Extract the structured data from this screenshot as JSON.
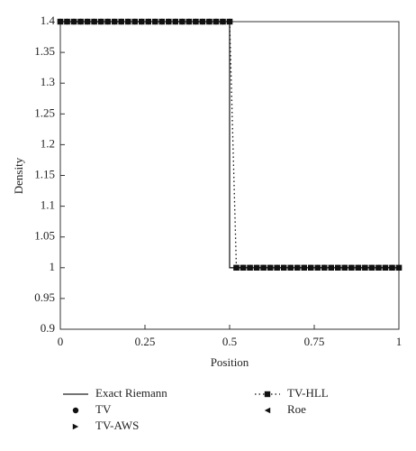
{
  "chart_data": {
    "type": "line",
    "xlabel": "Position",
    "ylabel": "Density",
    "xlim": [
      0,
      1
    ],
    "ylim": [
      0.9,
      1.4
    ],
    "xticks": [
      0,
      0.25,
      0.5,
      0.75,
      1
    ],
    "yticks": [
      0.9,
      0.95,
      1,
      1.05,
      1.1,
      1.15,
      1.2,
      1.25,
      1.3,
      1.35,
      1.4
    ],
    "series": [
      {
        "name": "Exact Riemann",
        "color": "#222222",
        "line": "solid",
        "marker": "none",
        "x": [
          0,
          0.5,
          0.5,
          1
        ],
        "values": [
          1.4,
          1.4,
          1,
          1
        ]
      },
      {
        "name": "TV",
        "color": "#111111",
        "line": "none",
        "marker": "circle",
        "x": [
          0,
          0.02,
          0.04,
          0.06,
          0.08,
          0.1,
          0.12,
          0.14,
          0.16,
          0.18,
          0.2,
          0.22,
          0.24,
          0.26,
          0.28,
          0.3,
          0.32,
          0.34,
          0.36,
          0.38,
          0.4,
          0.42,
          0.44,
          0.46,
          0.48,
          0.5,
          0.52,
          0.54,
          0.56,
          0.58,
          0.6,
          0.62,
          0.64,
          0.66,
          0.68,
          0.7,
          0.72,
          0.74,
          0.76,
          0.78,
          0.8,
          0.82,
          0.84,
          0.86,
          0.88,
          0.9,
          0.92,
          0.94,
          0.96,
          0.98,
          1
        ],
        "values": [
          1.4,
          1.4,
          1.4,
          1.4,
          1.4,
          1.4,
          1.4,
          1.4,
          1.4,
          1.4,
          1.4,
          1.4,
          1.4,
          1.4,
          1.4,
          1.4,
          1.4,
          1.4,
          1.4,
          1.4,
          1.4,
          1.4,
          1.4,
          1.4,
          1.4,
          1.4,
          1,
          1,
          1,
          1,
          1,
          1,
          1,
          1,
          1,
          1,
          1,
          1,
          1,
          1,
          1,
          1,
          1,
          1,
          1,
          1,
          1,
          1,
          1,
          1,
          1
        ]
      },
      {
        "name": "TV-AWS",
        "color": "#111111",
        "line": "none",
        "marker": "triangle-right",
        "x": [
          0,
          0.02,
          0.04,
          0.06,
          0.08,
          0.1,
          0.12,
          0.14,
          0.16,
          0.18,
          0.2,
          0.22,
          0.24,
          0.26,
          0.28,
          0.3,
          0.32,
          0.34,
          0.36,
          0.38,
          0.4,
          0.42,
          0.44,
          0.46,
          0.48,
          0.5,
          0.52,
          0.54,
          0.56,
          0.58,
          0.6,
          0.62,
          0.64,
          0.66,
          0.68,
          0.7,
          0.72,
          0.74,
          0.76,
          0.78,
          0.8,
          0.82,
          0.84,
          0.86,
          0.88,
          0.9,
          0.92,
          0.94,
          0.96,
          0.98,
          1
        ],
        "values": [
          1.4,
          1.4,
          1.4,
          1.4,
          1.4,
          1.4,
          1.4,
          1.4,
          1.4,
          1.4,
          1.4,
          1.4,
          1.4,
          1.4,
          1.4,
          1.4,
          1.4,
          1.4,
          1.4,
          1.4,
          1.4,
          1.4,
          1.4,
          1.4,
          1.4,
          1.4,
          1,
          1,
          1,
          1,
          1,
          1,
          1,
          1,
          1,
          1,
          1,
          1,
          1,
          1,
          1,
          1,
          1,
          1,
          1,
          1,
          1,
          1,
          1,
          1,
          1
        ]
      },
      {
        "name": "TV-HLL",
        "color": "#111111",
        "line": "dotted",
        "marker": "square",
        "x": [
          0,
          0.02,
          0.04,
          0.06,
          0.08,
          0.1,
          0.12,
          0.14,
          0.16,
          0.18,
          0.2,
          0.22,
          0.24,
          0.26,
          0.28,
          0.3,
          0.32,
          0.34,
          0.36,
          0.38,
          0.4,
          0.42,
          0.44,
          0.46,
          0.48,
          0.5,
          0.52,
          0.54,
          0.56,
          0.58,
          0.6,
          0.62,
          0.64,
          0.66,
          0.68,
          0.7,
          0.72,
          0.74,
          0.76,
          0.78,
          0.8,
          0.82,
          0.84,
          0.86,
          0.88,
          0.9,
          0.92,
          0.94,
          0.96,
          0.98,
          1
        ],
        "values": [
          1.4,
          1.4,
          1.4,
          1.4,
          1.4,
          1.4,
          1.4,
          1.4,
          1.4,
          1.4,
          1.4,
          1.4,
          1.4,
          1.4,
          1.4,
          1.4,
          1.4,
          1.4,
          1.4,
          1.4,
          1.4,
          1.4,
          1.4,
          1.4,
          1.4,
          1.4,
          1,
          1,
          1,
          1,
          1,
          1,
          1,
          1,
          1,
          1,
          1,
          1,
          1,
          1,
          1,
          1,
          1,
          1,
          1,
          1,
          1,
          1,
          1,
          1,
          1
        ]
      },
      {
        "name": "Roe",
        "color": "#111111",
        "line": "none",
        "marker": "triangle-left",
        "x": [
          0,
          0.02,
          0.04,
          0.06,
          0.08,
          0.1,
          0.12,
          0.14,
          0.16,
          0.18,
          0.2,
          0.22,
          0.24,
          0.26,
          0.28,
          0.3,
          0.32,
          0.34,
          0.36,
          0.38,
          0.4,
          0.42,
          0.44,
          0.46,
          0.48,
          0.5,
          0.52,
          0.54,
          0.56,
          0.58,
          0.6,
          0.62,
          0.64,
          0.66,
          0.68,
          0.7,
          0.72,
          0.74,
          0.76,
          0.78,
          0.8,
          0.82,
          0.84,
          0.86,
          0.88,
          0.9,
          0.92,
          0.94,
          0.96,
          0.98,
          1
        ],
        "values": [
          1.4,
          1.4,
          1.4,
          1.4,
          1.4,
          1.4,
          1.4,
          1.4,
          1.4,
          1.4,
          1.4,
          1.4,
          1.4,
          1.4,
          1.4,
          1.4,
          1.4,
          1.4,
          1.4,
          1.4,
          1.4,
          1.4,
          1.4,
          1.4,
          1.4,
          1.4,
          1,
          1,
          1,
          1,
          1,
          1,
          1,
          1,
          1,
          1,
          1,
          1,
          1,
          1,
          1,
          1,
          1,
          1,
          1,
          1,
          1,
          1,
          1,
          1,
          1
        ]
      }
    ]
  }
}
